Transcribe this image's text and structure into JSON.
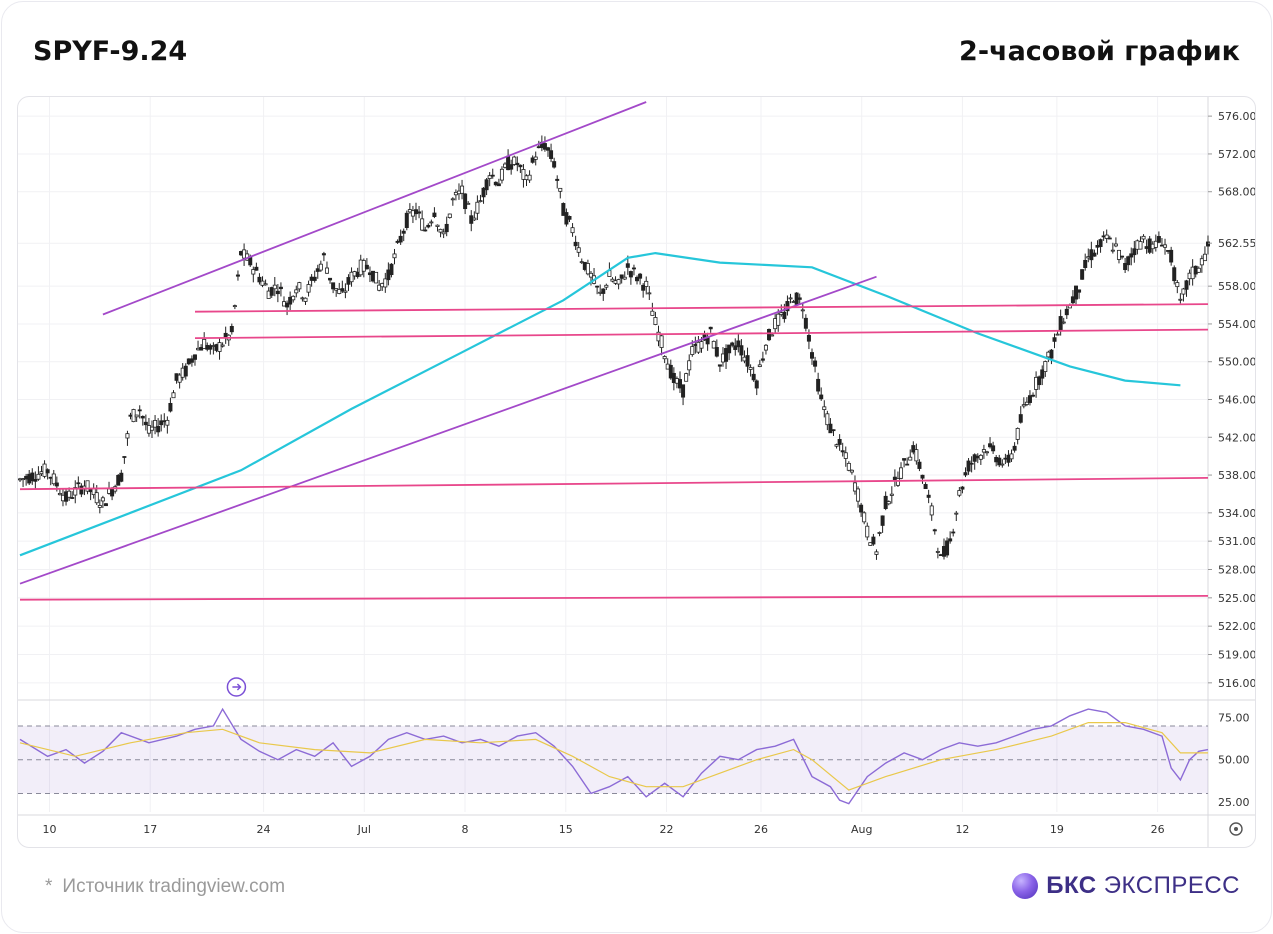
{
  "header": {
    "ticker": "SPYF-9.24",
    "timeframe": "2-часовой график"
  },
  "footer": {
    "star": "*",
    "source": "Источник tradingview.com",
    "brand_bold": "БКС",
    "brand_rest": " ЭКСПРЕСС"
  },
  "chart_data": [
    {
      "type": "candlestick",
      "title": "",
      "ylim": [
        514.5,
        577.5
      ],
      "y_ticks": [
        576,
        572,
        568,
        562.55,
        558,
        554,
        550,
        546,
        542,
        538,
        534,
        531,
        528,
        525,
        522,
        519,
        516
      ],
      "y_tick_labels": [
        "576.00",
        "572.00",
        "568.00",
        "562.55",
        "558.00",
        "554.00",
        "550.00",
        "546.00",
        "542.00",
        "538.00",
        "534.00",
        "531.00",
        "528.00",
        "525.00",
        "522.00",
        "519.00",
        "516.00"
      ],
      "x_tick_labels": [
        "10",
        "17",
        "24",
        "Jul",
        "8",
        "15",
        "22",
        "26",
        "Aug",
        "12",
        "19",
        "26"
      ],
      "grid": true,
      "close_path": [
        [
          0,
          537.5
        ],
        [
          3,
          538.5
        ],
        [
          5,
          535.5
        ],
        [
          7,
          537
        ],
        [
          9,
          535
        ],
        [
          11,
          538
        ],
        [
          12,
          544
        ],
        [
          13,
          545
        ],
        [
          14,
          542.5
        ],
        [
          16,
          544
        ],
        [
          17,
          548
        ],
        [
          18,
          549
        ],
        [
          19,
          551
        ],
        [
          20,
          552
        ],
        [
          21,
          551
        ],
        [
          22,
          552
        ],
        [
          23,
          553
        ],
        [
          24,
          561.5
        ],
        [
          25,
          560.5
        ],
        [
          26,
          559
        ],
        [
          27,
          557.5
        ],
        [
          28,
          558
        ],
        [
          29,
          556
        ],
        [
          30,
          558
        ],
        [
          31,
          557
        ],
        [
          32,
          559
        ],
        [
          33,
          561
        ],
        [
          34,
          558
        ],
        [
          35,
          557
        ],
        [
          36,
          559
        ],
        [
          37,
          560
        ],
        [
          38,
          560
        ],
        [
          39,
          558
        ],
        [
          40,
          559
        ],
        [
          41,
          562
        ],
        [
          42,
          565
        ],
        [
          43,
          566
        ],
        [
          44,
          564
        ],
        [
          45,
          566
        ],
        [
          46,
          563
        ],
        [
          47,
          567
        ],
        [
          48,
          568
        ],
        [
          49,
          565
        ],
        [
          50,
          567
        ],
        [
          51,
          570
        ],
        [
          52,
          569
        ],
        [
          53,
          571
        ],
        [
          54,
          571
        ],
        [
          55,
          569
        ],
        [
          56,
          572
        ],
        [
          57,
          573
        ],
        [
          58,
          571
        ],
        [
          59,
          566
        ],
        [
          60,
          564
        ],
        [
          61,
          561
        ],
        [
          62,
          559
        ],
        [
          63,
          557
        ],
        [
          64,
          559
        ],
        [
          65,
          558
        ],
        [
          66,
          560
        ],
        [
          67,
          559
        ],
        [
          68,
          558
        ],
        [
          69,
          554
        ],
        [
          70,
          551
        ],
        [
          71,
          548
        ],
        [
          72,
          547
        ],
        [
          73,
          551
        ],
        [
          74,
          552
        ],
        [
          75,
          553
        ],
        [
          76,
          550
        ],
        [
          77,
          551
        ],
        [
          78,
          552
        ],
        [
          79,
          550
        ],
        [
          80,
          548
        ],
        [
          81,
          552
        ],
        [
          82,
          554
        ],
        [
          83,
          555
        ],
        [
          84,
          557
        ],
        [
          85,
          556
        ],
        [
          86,
          551
        ],
        [
          87,
          546
        ],
        [
          88,
          543
        ],
        [
          89,
          541
        ],
        [
          90,
          539
        ],
        [
          91,
          536
        ],
        [
          92,
          532
        ],
        [
          93,
          530
        ],
        [
          94,
          535
        ],
        [
          95,
          537
        ],
        [
          96,
          539
        ],
        [
          97,
          541
        ],
        [
          98,
          538
        ],
        [
          99,
          534
        ],
        [
          100,
          529
        ],
        [
          101,
          531
        ],
        [
          102,
          536
        ],
        [
          103,
          539
        ],
        [
          104,
          540
        ],
        [
          105,
          541
        ],
        [
          106,
          540
        ],
        [
          107,
          539
        ],
        [
          108,
          541
        ],
        [
          109,
          545
        ],
        [
          110,
          547
        ],
        [
          111,
          549
        ],
        [
          112,
          551
        ],
        [
          113,
          554
        ],
        [
          114,
          556
        ],
        [
          115,
          558
        ],
        [
          116,
          561
        ],
        [
          117,
          562
        ],
        [
          118,
          563
        ],
        [
          119,
          562
        ],
        [
          120,
          560
        ],
        [
          121,
          562
        ],
        [
          122,
          563
        ],
        [
          123,
          562
        ],
        [
          124,
          563
        ],
        [
          125,
          561
        ],
        [
          126,
          556
        ],
        [
          127,
          559
        ],
        [
          128,
          560
        ],
        [
          129,
          562
        ]
      ],
      "series": [
        {
          "name": "",
          "kind": "moving-average",
          "color": "#26c6da",
          "points": [
            [
              0,
              529.5
            ],
            [
              12,
              534
            ],
            [
              24,
              538.5
            ],
            [
              36,
              545
            ],
            [
              48,
              551
            ],
            [
              59,
              556.5
            ],
            [
              66,
              561
            ],
            [
              69,
              561.5
            ],
            [
              76,
              560.5
            ],
            [
              86,
              560
            ],
            [
              94,
              557
            ],
            [
              104,
              553
            ],
            [
              114,
              549.5
            ],
            [
              120,
              548
            ],
            [
              126,
              547.5
            ]
          ]
        },
        {
          "name": "",
          "kind": "channel-upper",
          "color": "#a349c9",
          "points": [
            [
              9,
              555
            ],
            [
              68,
              577.5
            ]
          ]
        },
        {
          "name": "",
          "kind": "channel-lower",
          "color": "#a349c9",
          "points": [
            [
              0,
              526.5
            ],
            [
              93,
              559
            ]
          ]
        },
        {
          "name": "",
          "kind": "horizontal-level",
          "color": "#e8478b",
          "points": [
            [
              19,
              555.3
            ],
            [
              129,
              556.1
            ]
          ]
        },
        {
          "name": "",
          "kind": "horizontal-level",
          "color": "#e8478b",
          "points": [
            [
              19,
              552.5
            ],
            [
              129,
              553.4
            ]
          ]
        },
        {
          "name": "",
          "kind": "horizontal-level",
          "color": "#e8478b",
          "points": [
            [
              0,
              536.5
            ],
            [
              129,
              537.7
            ]
          ]
        },
        {
          "name": "",
          "kind": "horizontal-level",
          "color": "#e8478b",
          "points": [
            [
              0,
              524.8
            ],
            [
              129,
              525.2
            ]
          ]
        }
      ]
    },
    {
      "type": "line",
      "title": "",
      "ylim": [
        19,
        83
      ],
      "y_ticks": [
        75,
        50,
        25
      ],
      "y_tick_labels": [
        "75.00",
        "50.00",
        "25.00"
      ],
      "band": [
        30,
        70
      ],
      "series": [
        {
          "name": "",
          "kind": "oscillator",
          "color": "#8c6bd6",
          "points": [
            [
              0,
              62
            ],
            [
              3,
              52
            ],
            [
              5,
              56
            ],
            [
              7,
              48
            ],
            [
              9,
              55
            ],
            [
              11,
              66
            ],
            [
              14,
              60
            ],
            [
              17,
              64
            ],
            [
              19,
              68
            ],
            [
              21,
              70
            ],
            [
              22,
              80
            ],
            [
              24,
              62
            ],
            [
              26,
              55
            ],
            [
              28,
              50
            ],
            [
              30,
              56
            ],
            [
              32,
              52
            ],
            [
              34,
              60
            ],
            [
              36,
              46
            ],
            [
              38,
              52
            ],
            [
              40,
              62
            ],
            [
              42,
              66
            ],
            [
              44,
              62
            ],
            [
              46,
              64
            ],
            [
              48,
              60
            ],
            [
              50,
              62
            ],
            [
              52,
              58
            ],
            [
              54,
              64
            ],
            [
              56,
              66
            ],
            [
              58,
              58
            ],
            [
              60,
              46
            ],
            [
              62,
              30
            ],
            [
              64,
              34
            ],
            [
              66,
              40
            ],
            [
              68,
              28
            ],
            [
              70,
              36
            ],
            [
              72,
              28
            ],
            [
              74,
              42
            ],
            [
              76,
              52
            ],
            [
              78,
              50
            ],
            [
              80,
              56
            ],
            [
              82,
              58
            ],
            [
              84,
              62
            ],
            [
              86,
              40
            ],
            [
              88,
              34
            ],
            [
              89,
              26
            ],
            [
              90,
              24
            ],
            [
              92,
              40
            ],
            [
              94,
              48
            ],
            [
              96,
              54
            ],
            [
              98,
              50
            ],
            [
              100,
              56
            ],
            [
              102,
              60
            ],
            [
              104,
              58
            ],
            [
              106,
              60
            ],
            [
              108,
              64
            ],
            [
              110,
              68
            ],
            [
              112,
              70
            ],
            [
              114,
              76
            ],
            [
              116,
              80
            ],
            [
              118,
              78
            ],
            [
              120,
              70
            ],
            [
              122,
              68
            ],
            [
              124,
              64
            ],
            [
              125,
              45
            ],
            [
              126,
              38
            ],
            [
              127,
              50
            ],
            [
              128,
              55
            ],
            [
              129,
              56
            ]
          ]
        },
        {
          "name": "",
          "kind": "signal",
          "color": "#e9c84b",
          "points": [
            [
              0,
              60
            ],
            [
              6,
              52
            ],
            [
              12,
              60
            ],
            [
              18,
              66
            ],
            [
              22,
              68
            ],
            [
              26,
              60
            ],
            [
              32,
              56
            ],
            [
              38,
              54
            ],
            [
              44,
              62
            ],
            [
              50,
              60
            ],
            [
              56,
              62
            ],
            [
              60,
              52
            ],
            [
              64,
              40
            ],
            [
              68,
              34
            ],
            [
              72,
              34
            ],
            [
              76,
              42
            ],
            [
              80,
              50
            ],
            [
              84,
              56
            ],
            [
              86,
              50
            ],
            [
              90,
              32
            ],
            [
              94,
              40
            ],
            [
              100,
              50
            ],
            [
              106,
              56
            ],
            [
              112,
              64
            ],
            [
              116,
              72
            ],
            [
              120,
              72
            ],
            [
              124,
              66
            ],
            [
              126,
              54
            ],
            [
              129,
              54
            ]
          ]
        }
      ]
    }
  ]
}
